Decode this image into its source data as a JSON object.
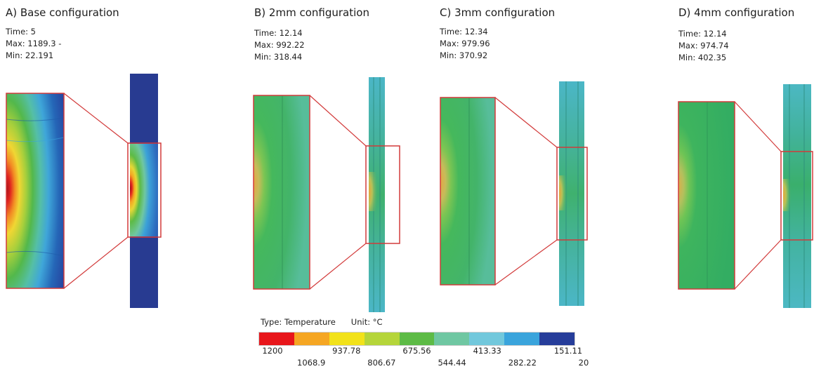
{
  "panels": [
    {
      "title": "A) Base configuration",
      "time": "Time: 5",
      "max": "Max: 1189.3 -",
      "min": "Min: 22.191"
    },
    {
      "title": "B) 2mm configuration",
      "time": "Time: 12.14",
      "max": "Max: 992.22",
      "min": "Min: 318.44"
    },
    {
      "title": "C) 3mm configuration",
      "time": "Time: 12.34",
      "max": "Max: 979.96",
      "min": "Min: 370.92"
    },
    {
      "title": "D) 4mm configuration",
      "time": "Time: 12.14",
      "max": "Max: 974.74",
      "min": "Min: 402.35"
    }
  ],
  "legend": {
    "type_label": "Type: Temperature",
    "unit_label": "Unit: °C",
    "colors": [
      "#e8161b",
      "#f5a623",
      "#f2e21a",
      "#b5d53a",
      "#5dbb46",
      "#6fc7a2",
      "#72c8dc",
      "#3aa4dc",
      "#263d9a"
    ],
    "ticks_top": [
      "1200",
      "937.78",
      "675.56",
      "413.33",
      "151.11"
    ],
    "ticks_bottom": [
      "1068.9",
      "806.67",
      "544.44",
      "282.22",
      "20"
    ]
  },
  "colors": {
    "callout_line": "#d23a3a",
    "base_background": "#283b91",
    "configured_background": "#43b37a"
  }
}
